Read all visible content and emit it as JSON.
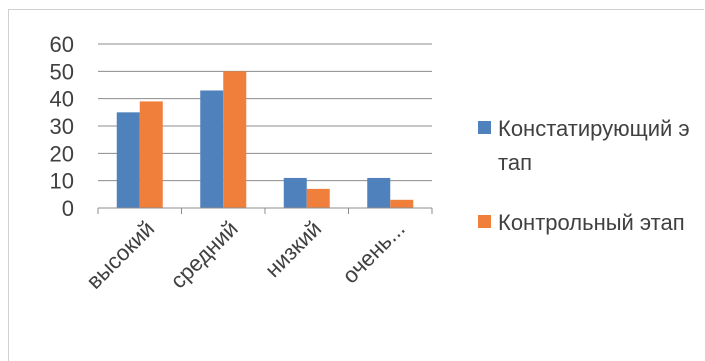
{
  "chart_data": {
    "type": "bar",
    "categories": [
      "высокий",
      "средний",
      "низкий",
      "очень..."
    ],
    "series": [
      {
        "name": "Констатирующий этап",
        "color": "#4F81BD",
        "values": [
          35,
          43,
          11,
          11
        ]
      },
      {
        "name": "Контрольный этап",
        "color": "#F07F3C",
        "values": [
          39,
          50,
          7,
          3
        ]
      }
    ],
    "yticks": [
      "0",
      "10",
      "20",
      "30",
      "40",
      "50",
      "60"
    ],
    "ylim": [
      0,
      60
    ],
    "grid": true,
    "legend": "right",
    "title": "",
    "xlabel": "",
    "ylabel": ""
  }
}
